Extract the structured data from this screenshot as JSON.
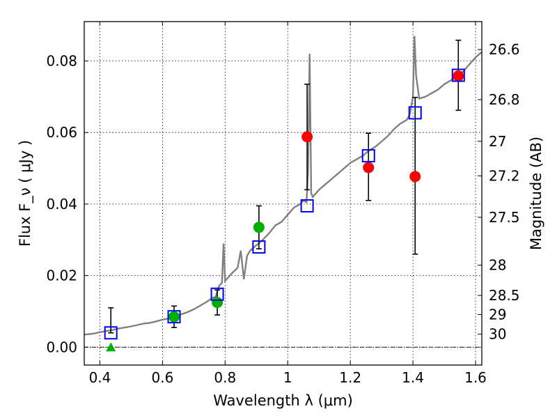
{
  "chart_data": {
    "type": "scatter",
    "xlabel": "Wavelength  λ (μm)",
    "ylabel": "Flux  F_ν  ( μJy )",
    "ylabel_right": "Magnitude (AB)",
    "xlim": [
      0.35,
      1.62
    ],
    "ylim": [
      -0.005,
      0.091
    ],
    "grid": true,
    "x_ticks": [
      0.4,
      0.6,
      0.8,
      1.0,
      1.2,
      1.4,
      1.6
    ],
    "x_tick_labels": [
      "0.4",
      "0.6",
      "0.8",
      "1",
      "1.2",
      "1.4",
      "1.6"
    ],
    "y_ticks": [
      0.0,
      0.02,
      0.04,
      0.06,
      0.08
    ],
    "y_tick_labels": [
      "0.00",
      "0.02",
      "0.04",
      "0.06",
      "0.08"
    ],
    "right_ticks": [
      {
        "label": "26.6",
        "mag": 26.6
      },
      {
        "label": "26.8",
        "mag": 26.8
      },
      {
        "label": "27",
        "mag": 27.0
      },
      {
        "label": "27.2",
        "mag": 27.2
      },
      {
        "label": "27.5",
        "mag": 27.5
      },
      {
        "label": "28",
        "mag": 28.0
      },
      {
        "label": "28.5",
        "mag": 28.5
      },
      {
        "label": "29",
        "mag": 29.0
      },
      {
        "label": "30",
        "mag": 30.0
      }
    ],
    "colors": {
      "sed_line": "#808080",
      "model_box": "#0000ff",
      "green_points": "#00b000",
      "red_points": "#ff0000",
      "errorbar": "#000000",
      "zero_line": "#000000"
    },
    "sed_curve": [
      [
        0.35,
        0.0035
      ],
      [
        0.38,
        0.0038
      ],
      [
        0.4,
        0.0042
      ],
      [
        0.42,
        0.0045
      ],
      [
        0.44,
        0.0048
      ],
      [
        0.46,
        0.0052
      ],
      [
        0.48,
        0.0055
      ],
      [
        0.5,
        0.0058
      ],
      [
        0.52,
        0.0062
      ],
      [
        0.54,
        0.0066
      ],
      [
        0.56,
        0.0068
      ],
      [
        0.58,
        0.0072
      ],
      [
        0.6,
        0.0077
      ],
      [
        0.62,
        0.008
      ],
      [
        0.64,
        0.0086
      ],
      [
        0.66,
        0.0092
      ],
      [
        0.68,
        0.0098
      ],
      [
        0.7,
        0.0106
      ],
      [
        0.72,
        0.0116
      ],
      [
        0.74,
        0.0126
      ],
      [
        0.76,
        0.0138
      ],
      [
        0.77,
        0.0141
      ],
      [
        0.78,
        0.017
      ],
      [
        0.79,
        0.018
      ],
      [
        0.795,
        0.029
      ],
      [
        0.8,
        0.0185
      ],
      [
        0.82,
        0.0205
      ],
      [
        0.84,
        0.0222
      ],
      [
        0.85,
        0.027
      ],
      [
        0.86,
        0.019
      ],
      [
        0.87,
        0.0255
      ],
      [
        0.88,
        0.027
      ],
      [
        0.9,
        0.0285
      ],
      [
        0.92,
        0.03
      ],
      [
        0.94,
        0.0318
      ],
      [
        0.96,
        0.034
      ],
      [
        0.98,
        0.035
      ],
      [
        1.0,
        0.037
      ],
      [
        1.02,
        0.039
      ],
      [
        1.04,
        0.04
      ],
      [
        1.05,
        0.041
      ],
      [
        1.06,
        0.0405
      ],
      [
        1.065,
        0.049
      ],
      [
        1.07,
        0.082
      ],
      [
        1.075,
        0.043
      ],
      [
        1.08,
        0.042
      ],
      [
        1.1,
        0.044
      ],
      [
        1.12,
        0.0455
      ],
      [
        1.14,
        0.047
      ],
      [
        1.16,
        0.0485
      ],
      [
        1.18,
        0.05
      ],
      [
        1.2,
        0.0515
      ],
      [
        1.22,
        0.0525
      ],
      [
        1.24,
        0.0535
      ],
      [
        1.26,
        0.055
      ],
      [
        1.28,
        0.056
      ],
      [
        1.3,
        0.0575
      ],
      [
        1.32,
        0.059
      ],
      [
        1.34,
        0.061
      ],
      [
        1.36,
        0.0625
      ],
      [
        1.38,
        0.0635
      ],
      [
        1.39,
        0.065
      ],
      [
        1.4,
        0.07
      ],
      [
        1.405,
        0.087
      ],
      [
        1.41,
        0.076
      ],
      [
        1.42,
        0.0695
      ],
      [
        1.44,
        0.07
      ],
      [
        1.46,
        0.071
      ],
      [
        1.48,
        0.072
      ],
      [
        1.5,
        0.0735
      ],
      [
        1.52,
        0.0745
      ],
      [
        1.54,
        0.0755
      ],
      [
        1.56,
        0.077
      ],
      [
        1.58,
        0.079
      ],
      [
        1.6,
        0.081
      ],
      [
        1.62,
        0.0825
      ]
    ],
    "model_boxes": [
      {
        "x": 0.435,
        "y": 0.004
      },
      {
        "x": 0.637,
        "y": 0.0085
      },
      {
        "x": 0.775,
        "y": 0.0148
      },
      {
        "x": 0.908,
        "y": 0.028
      },
      {
        "x": 1.062,
        "y": 0.0395
      },
      {
        "x": 1.258,
        "y": 0.0535
      },
      {
        "x": 1.407,
        "y": 0.0655
      },
      {
        "x": 1.545,
        "y": 0.076
      }
    ],
    "green_points": [
      {
        "x": 0.637,
        "y": 0.0085,
        "err_low": 0.0055,
        "err_high": 0.0115
      },
      {
        "x": 0.775,
        "y": 0.0125,
        "err_low": 0.009,
        "err_high": 0.016
      },
      {
        "x": 0.908,
        "y": 0.0335,
        "err_low": 0.0275,
        "err_high": 0.0395
      }
    ],
    "green_upper_limit": {
      "x": 0.435,
      "y": 0.0
    },
    "red_points": [
      {
        "x": 1.062,
        "y": 0.0588,
        "err_low": 0.044,
        "err_high": 0.0735
      },
      {
        "x": 1.258,
        "y": 0.0502,
        "err_low": 0.041,
        "err_high": 0.0598
      },
      {
        "x": 1.407,
        "y": 0.0477,
        "err_low": 0.026,
        "err_high": 0.0698
      },
      {
        "x": 1.545,
        "y": 0.0758,
        "err_low": 0.0662,
        "err_high": 0.0858
      }
    ],
    "upper_limit_errorbar": {
      "x": 0.435,
      "err_low": 0.004,
      "err_high": 0.011
    }
  }
}
